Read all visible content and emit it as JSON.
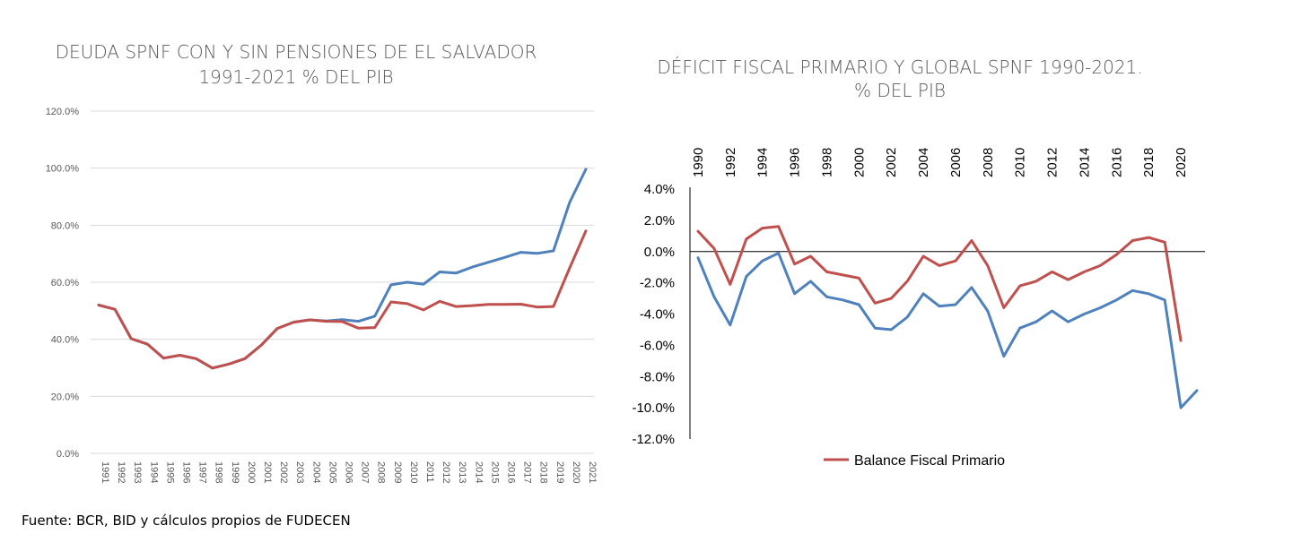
{
  "source_note": "Fuente: BCR, BID  y cálculos propios de FUDECEN",
  "chart_data": [
    {
      "type": "line",
      "title_lines": [
        "DEUDA SPNF CON Y SIN PENSIONES DE EL SALVADOR",
        "1991-2021 % DEL PIB"
      ],
      "x": [
        "1991",
        "1992",
        "1993",
        "1994",
        "1995",
        "1996",
        "1997",
        "1998",
        "1999",
        "2000",
        "2001",
        "2002",
        "2003",
        "2004",
        "2005",
        "2006",
        "2007",
        "2008",
        "2009",
        "2010",
        "2011",
        "2012",
        "2013",
        "2014",
        "2015",
        "2016",
        "2017",
        "2018",
        "2019",
        "2020",
        "2021"
      ],
      "ylim": [
        0,
        120
      ],
      "y_ticks": [
        "0.0%",
        "20.0%",
        "40.0%",
        "60.0%",
        "80.0%",
        "100.0%",
        "120.0%"
      ],
      "y_tick_values": [
        0,
        20,
        40,
        60,
        80,
        100,
        120
      ],
      "grid": true,
      "series": [
        {
          "color": "#4F81BD",
          "values": [
            52.0,
            50.5,
            40.2,
            38.3,
            33.4,
            34.4,
            33.2,
            29.9,
            31.3,
            33.2,
            37.9,
            43.8,
            46.0,
            46.8,
            46.4,
            46.9,
            46.3,
            48.1,
            59.1,
            60.0,
            59.3,
            63.6,
            63.2,
            65.3,
            67.0,
            68.7,
            70.5,
            70.1,
            71.0,
            88.0,
            99.6
          ]
        },
        {
          "color": "#C0504D",
          "values": [
            52.0,
            50.5,
            40.2,
            38.3,
            33.4,
            34.4,
            33.2,
            29.9,
            31.3,
            33.2,
            37.9,
            43.8,
            46.0,
            46.8,
            46.3,
            46.2,
            43.9,
            44.1,
            53.1,
            52.5,
            50.3,
            53.3,
            51.5,
            51.8,
            52.2,
            52.2,
            52.3,
            51.3,
            51.5,
            65.0,
            78.0
          ]
        }
      ]
    },
    {
      "type": "line",
      "title_lines": [
        "DÉFICIT FISCAL PRIMARIO Y GLOBAL SPNF 1990-2021.",
        "% DEL PIB"
      ],
      "x": [
        "1990",
        "1991",
        "1992",
        "1993",
        "1994",
        "1995",
        "1996",
        "1997",
        "1998",
        "1999",
        "2000",
        "2001",
        "2002",
        "2003",
        "2004",
        "2005",
        "2006",
        "2007",
        "2008",
        "2009",
        "2010",
        "2011",
        "2012",
        "2013",
        "2014",
        "2015",
        "2016",
        "2017",
        "2018",
        "2019",
        "2020",
        "2021"
      ],
      "x_tick_labels": [
        "1990",
        "1992",
        "1994",
        "1996",
        "1998",
        "2000",
        "2002",
        "2004",
        "2006",
        "2008",
        "2010",
        "2012",
        "2014",
        "2016",
        "2018",
        "2020"
      ],
      "x_axis_position": "top",
      "ylim": [
        -12,
        4
      ],
      "y_ticks": [
        "4.0%",
        "2.0%",
        "0.0%",
        "-2.0%",
        "-4.0%",
        "-6.0%",
        "-8.0%",
        "-10.0%",
        "-12.0%"
      ],
      "y_tick_values": [
        4,
        2,
        0,
        -2,
        -4,
        -6,
        -8,
        -10,
        -12
      ],
      "grid": false,
      "legend": {
        "position": "bottom",
        "entries": [
          {
            "name": "Balance Fiscal Primario",
            "color": "#C0504D"
          }
        ]
      },
      "series": [
        {
          "color": "#C0504D",
          "name": "Balance Fiscal Primario",
          "values": [
            1.3,
            0.2,
            -2.1,
            0.8,
            1.5,
            1.6,
            -0.8,
            -0.3,
            -1.3,
            -1.5,
            -1.7,
            -3.3,
            -3.0,
            -1.9,
            -0.3,
            -0.9,
            -0.6,
            0.7,
            -0.9,
            -3.6,
            -2.2,
            -1.9,
            -1.3,
            -1.8,
            -1.3,
            -0.9,
            -0.2,
            0.7,
            0.9,
            0.6,
            -5.7,
            null
          ]
        },
        {
          "color": "#4F81BD",
          "values": [
            -0.4,
            -2.9,
            -4.7,
            -1.6,
            -0.6,
            -0.1,
            -2.7,
            -1.9,
            -2.9,
            -3.1,
            -3.4,
            -4.9,
            -5.0,
            -4.2,
            -2.7,
            -3.5,
            -3.4,
            -2.3,
            -3.8,
            -6.7,
            -4.9,
            -4.5,
            -3.8,
            -4.5,
            -4.0,
            -3.6,
            -3.1,
            -2.5,
            -2.7,
            -3.1,
            -10.0,
            -8.9
          ]
        }
      ]
    }
  ]
}
